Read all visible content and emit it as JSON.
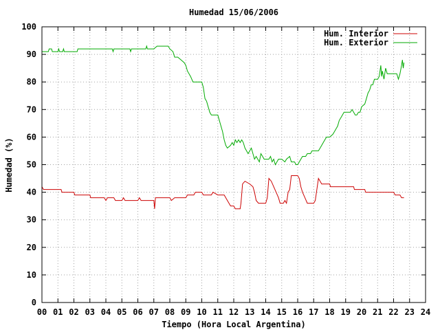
{
  "chart_data": {
    "type": "line",
    "title": "Humedad 15/06/2006",
    "xlabel": "Tiempo (Hora Local Argentina)",
    "ylabel": "Humedad (%)",
    "xlim": [
      0,
      24
    ],
    "ylim": [
      0,
      100
    ],
    "x_ticks": [
      "00",
      "01",
      "02",
      "03",
      "04",
      "05",
      "06",
      "07",
      "08",
      "09",
      "10",
      "11",
      "12",
      "13",
      "14",
      "15",
      "16",
      "17",
      "18",
      "19",
      "20",
      "21",
      "22",
      "23",
      "24"
    ],
    "y_ticks": [
      "0",
      "10",
      "20",
      "30",
      "40",
      "50",
      "60",
      "70",
      "80",
      "90",
      "100"
    ],
    "grid": true,
    "legend_position": "top-right",
    "series": [
      {
        "name": "Hum. Interior",
        "color": "#cc0000",
        "points": [
          [
            0.0,
            42
          ],
          [
            0.1,
            41
          ],
          [
            0.5,
            41
          ],
          [
            1.2,
            41
          ],
          [
            1.25,
            40
          ],
          [
            2.0,
            40
          ],
          [
            2.05,
            39
          ],
          [
            3.0,
            39
          ],
          [
            3.05,
            38
          ],
          [
            3.9,
            38
          ],
          [
            4.0,
            37
          ],
          [
            4.1,
            38
          ],
          [
            4.5,
            38
          ],
          [
            4.6,
            37
          ],
          [
            5.0,
            37
          ],
          [
            5.1,
            38
          ],
          [
            5.2,
            37
          ],
          [
            6.0,
            37
          ],
          [
            6.1,
            38
          ],
          [
            6.2,
            37
          ],
          [
            7.0,
            37
          ],
          [
            7.05,
            34
          ],
          [
            7.1,
            38
          ],
          [
            8.0,
            38
          ],
          [
            8.1,
            37
          ],
          [
            8.3,
            38
          ],
          [
            9.0,
            38
          ],
          [
            9.1,
            39
          ],
          [
            9.5,
            39
          ],
          [
            9.6,
            40
          ],
          [
            10.0,
            40
          ],
          [
            10.1,
            39
          ],
          [
            10.6,
            39
          ],
          [
            10.7,
            40
          ],
          [
            11.0,
            39
          ],
          [
            11.4,
            39
          ],
          [
            11.6,
            37
          ],
          [
            11.8,
            35
          ],
          [
            12.0,
            35
          ],
          [
            12.1,
            34
          ],
          [
            12.4,
            34
          ],
          [
            12.45,
            36
          ],
          [
            12.55,
            43
          ],
          [
            12.7,
            44
          ],
          [
            13.0,
            43
          ],
          [
            13.2,
            42
          ],
          [
            13.3,
            40
          ],
          [
            13.4,
            37
          ],
          [
            13.55,
            36
          ],
          [
            14.0,
            36
          ],
          [
            14.1,
            38
          ],
          [
            14.2,
            45
          ],
          [
            14.35,
            44
          ],
          [
            14.5,
            42
          ],
          [
            14.65,
            40
          ],
          [
            14.8,
            38
          ],
          [
            14.9,
            36
          ],
          [
            15.1,
            36
          ],
          [
            15.2,
            37
          ],
          [
            15.3,
            36
          ],
          [
            15.4,
            40
          ],
          [
            15.5,
            41
          ],
          [
            15.6,
            46
          ],
          [
            16.0,
            46
          ],
          [
            16.1,
            45
          ],
          [
            16.2,
            42
          ],
          [
            16.3,
            40
          ],
          [
            16.45,
            38
          ],
          [
            16.6,
            36
          ],
          [
            17.0,
            36
          ],
          [
            17.1,
            37
          ],
          [
            17.2,
            41
          ],
          [
            17.3,
            45
          ],
          [
            17.4,
            44
          ],
          [
            17.5,
            43
          ],
          [
            18.0,
            43
          ],
          [
            18.05,
            42
          ],
          [
            19.0,
            42
          ],
          [
            19.5,
            42
          ],
          [
            19.55,
            41
          ],
          [
            20.0,
            41
          ],
          [
            20.2,
            41
          ],
          [
            20.25,
            40
          ],
          [
            21.0,
            40
          ],
          [
            21.5,
            40
          ],
          [
            22.0,
            40
          ],
          [
            22.1,
            39
          ],
          [
            22.4,
            39
          ],
          [
            22.5,
            38
          ],
          [
            22.65,
            38
          ]
        ]
      },
      {
        "name": "Hum. Exterior",
        "color": "#00aa00",
        "points": [
          [
            0.0,
            91
          ],
          [
            0.4,
            91
          ],
          [
            0.45,
            92
          ],
          [
            0.6,
            92
          ],
          [
            0.65,
            91
          ],
          [
            1.0,
            91
          ],
          [
            1.05,
            92
          ],
          [
            1.1,
            91
          ],
          [
            1.3,
            91
          ],
          [
            1.35,
            92
          ],
          [
            1.4,
            91
          ],
          [
            2.2,
            91
          ],
          [
            2.25,
            92
          ],
          [
            3.0,
            92
          ],
          [
            3.5,
            92
          ],
          [
            4.4,
            92
          ],
          [
            4.45,
            91
          ],
          [
            4.5,
            92
          ],
          [
            5.0,
            92
          ],
          [
            5.5,
            92
          ],
          [
            5.55,
            91
          ],
          [
            5.6,
            92
          ],
          [
            6.0,
            92
          ],
          [
            6.5,
            92
          ],
          [
            6.55,
            93
          ],
          [
            6.6,
            92
          ],
          [
            7.0,
            92
          ],
          [
            7.2,
            93
          ],
          [
            7.5,
            93
          ],
          [
            7.9,
            93
          ],
          [
            8.0,
            92
          ],
          [
            8.2,
            91
          ],
          [
            8.3,
            89
          ],
          [
            8.5,
            89
          ],
          [
            8.7,
            88
          ],
          [
            8.9,
            87
          ],
          [
            9.0,
            86
          ],
          [
            9.1,
            84
          ],
          [
            9.3,
            82
          ],
          [
            9.45,
            80
          ],
          [
            10.0,
            80
          ],
          [
            10.1,
            78
          ],
          [
            10.2,
            74
          ],
          [
            10.3,
            73
          ],
          [
            10.4,
            71
          ],
          [
            10.5,
            69
          ],
          [
            10.6,
            68
          ],
          [
            11.0,
            68
          ],
          [
            11.1,
            66
          ],
          [
            11.2,
            64
          ],
          [
            11.3,
            62
          ],
          [
            11.4,
            59
          ],
          [
            11.5,
            57
          ],
          [
            11.6,
            56
          ],
          [
            11.8,
            57
          ],
          [
            11.9,
            58
          ],
          [
            12.0,
            57
          ],
          [
            12.1,
            59
          ],
          [
            12.2,
            58
          ],
          [
            12.3,
            59
          ],
          [
            12.4,
            58
          ],
          [
            12.5,
            59
          ],
          [
            12.6,
            58
          ],
          [
            12.7,
            56
          ],
          [
            12.8,
            55
          ],
          [
            12.9,
            54
          ],
          [
            13.0,
            55
          ],
          [
            13.1,
            56
          ],
          [
            13.2,
            54
          ],
          [
            13.3,
            52
          ],
          [
            13.4,
            53
          ],
          [
            13.5,
            52
          ],
          [
            13.6,
            51
          ],
          [
            13.7,
            54
          ],
          [
            13.8,
            53
          ],
          [
            13.9,
            52
          ],
          [
            14.0,
            52
          ],
          [
            14.2,
            52
          ],
          [
            14.3,
            53
          ],
          [
            14.4,
            51
          ],
          [
            14.5,
            52
          ],
          [
            14.6,
            50
          ],
          [
            14.7,
            51
          ],
          [
            14.8,
            52
          ],
          [
            15.0,
            52
          ],
          [
            15.2,
            51
          ],
          [
            15.3,
            52
          ],
          [
            15.5,
            53
          ],
          [
            15.6,
            51
          ],
          [
            15.8,
            51
          ],
          [
            15.9,
            50
          ],
          [
            16.0,
            50
          ],
          [
            16.1,
            51
          ],
          [
            16.2,
            52
          ],
          [
            16.3,
            53
          ],
          [
            16.5,
            53
          ],
          [
            16.6,
            54
          ],
          [
            16.8,
            54
          ],
          [
            16.9,
            55
          ],
          [
            17.0,
            55
          ],
          [
            17.3,
            55
          ],
          [
            17.4,
            56
          ],
          [
            17.5,
            57
          ],
          [
            17.6,
            58
          ],
          [
            17.7,
            59
          ],
          [
            17.8,
            60
          ],
          [
            18.0,
            60
          ],
          [
            18.2,
            61
          ],
          [
            18.3,
            62
          ],
          [
            18.4,
            63
          ],
          [
            18.5,
            64
          ],
          [
            18.6,
            66
          ],
          [
            18.7,
            67
          ],
          [
            18.8,
            68
          ],
          [
            18.9,
            69
          ],
          [
            19.0,
            69
          ],
          [
            19.3,
            69
          ],
          [
            19.4,
            70
          ],
          [
            19.5,
            69
          ],
          [
            19.6,
            68
          ],
          [
            19.7,
            68
          ],
          [
            19.8,
            69
          ],
          [
            19.9,
            69
          ],
          [
            20.0,
            71
          ],
          [
            20.2,
            72
          ],
          [
            20.3,
            74
          ],
          [
            20.4,
            76
          ],
          [
            20.5,
            77
          ],
          [
            20.6,
            79
          ],
          [
            20.7,
            79
          ],
          [
            20.8,
            81
          ],
          [
            21.0,
            81
          ],
          [
            21.1,
            82
          ],
          [
            21.2,
            86
          ],
          [
            21.25,
            82
          ],
          [
            21.3,
            84
          ],
          [
            21.4,
            81
          ],
          [
            21.5,
            85
          ],
          [
            21.6,
            83
          ],
          [
            21.8,
            83
          ],
          [
            22.0,
            83
          ],
          [
            22.2,
            83
          ],
          [
            22.3,
            81
          ],
          [
            22.4,
            83
          ],
          [
            22.5,
            86
          ],
          [
            22.55,
            88
          ],
          [
            22.6,
            85
          ],
          [
            22.65,
            87
          ]
        ]
      }
    ]
  }
}
